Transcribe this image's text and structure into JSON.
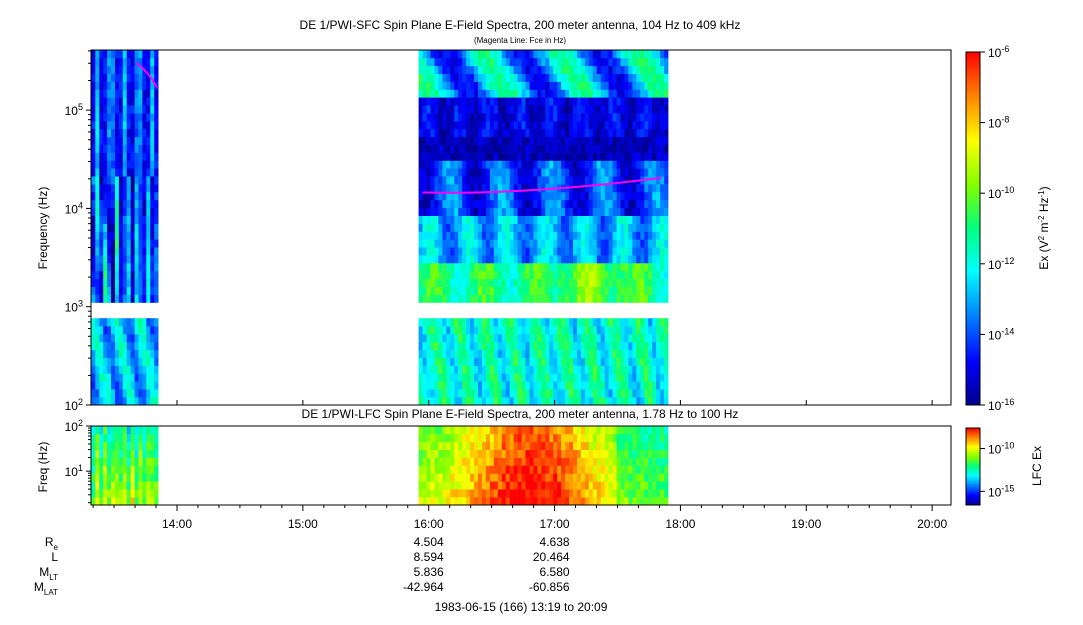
{
  "chart_data": [
    {
      "type": "heatmap",
      "title": "DE 1/PWI-SFC  Spin Plane E-Field Spectra, 200 meter antenna, 104 Hz to 409 kHz",
      "subtitle": "(Magenta Line: Fce in Hz)",
      "ylabel": "Frequency (Hz)",
      "yscale": "log",
      "ylim": [
        100,
        409000
      ],
      "y_ticks": [
        {
          "value": 100,
          "base": "10",
          "exp": "2"
        },
        {
          "value": 1000,
          "base": "10",
          "exp": "3"
        },
        {
          "value": 10000,
          "base": "10",
          "exp": "4"
        },
        {
          "value": 100000,
          "base": "10",
          "exp": "5"
        }
      ],
      "colorbar": {
        "label_parts": {
          "a": "Ex (V",
          "b": "2",
          "c": " m",
          "d": "-2",
          "e": " Hz",
          "f": "-1",
          "g": ")"
        },
        "scale": "log",
        "range": [
          1e-16,
          1e-06
        ],
        "ticks": [
          {
            "value": 1e-06,
            "base": "10",
            "exp": "-6"
          },
          {
            "value": 1e-08,
            "base": "10",
            "exp": "-8"
          },
          {
            "value": 1e-10,
            "base": "10",
            "exp": "-10"
          },
          {
            "value": 1e-12,
            "base": "10",
            "exp": "-12"
          },
          {
            "value": 1e-14,
            "base": "10",
            "exp": "-14"
          },
          {
            "value": 1e-16,
            "base": "10",
            "exp": "-16"
          }
        ]
      },
      "data_intervals_hours": [
        [
          13.32,
          13.85
        ],
        [
          15.92,
          17.87
        ]
      ]
    },
    {
      "type": "heatmap",
      "title": "DE 1/PWI-LFC  Spin Plane E-Field Spectra, 200 meter antenna, 1.78 Hz to 100 Hz",
      "ylabel": "Freq (Hz)",
      "yscale": "log",
      "ylim": [
        1.78,
        100
      ],
      "y_ticks": [
        {
          "value": 10,
          "base": "10",
          "exp": "1"
        },
        {
          "value": 100,
          "base": "10",
          "exp": "2"
        }
      ],
      "colorbar": {
        "label": "LFC Ex",
        "scale": "log",
        "ticks": [
          {
            "value": 1e-10,
            "base": "10",
            "exp": "-10"
          },
          {
            "value": 1e-15,
            "base": "10",
            "exp": "-15"
          }
        ]
      },
      "data_intervals_hours": [
        [
          13.32,
          13.85
        ],
        [
          15.92,
          17.87
        ]
      ]
    }
  ],
  "x_axis": {
    "range_hours": [
      13.3167,
      20.15
    ],
    "tick_labels": [
      {
        "hour": 14,
        "label": "14:00"
      },
      {
        "hour": 15,
        "label": "15:00"
      },
      {
        "hour": 16,
        "label": "16:00"
      },
      {
        "hour": 17,
        "label": "17:00"
      },
      {
        "hour": 18,
        "label": "18:00"
      },
      {
        "hour": 19,
        "label": "19:00"
      },
      {
        "hour": 20,
        "label": "20:00"
      }
    ]
  },
  "ephemeris": {
    "rows": [
      {
        "label": "R",
        "sub": "e",
        "values": [
          {
            "hour": 16,
            "text": "4.504"
          },
          {
            "hour": 17,
            "text": "4.638"
          }
        ]
      },
      {
        "label": "L",
        "sub": "",
        "values": [
          {
            "hour": 16,
            "text": "8.594"
          },
          {
            "hour": 17,
            "text": "20.464"
          }
        ]
      },
      {
        "label": "M",
        "sub": "LT",
        "values": [
          {
            "hour": 16,
            "text": "5.836"
          },
          {
            "hour": 17,
            "text": "6.580"
          }
        ]
      },
      {
        "label": "M",
        "sub": "LAT",
        "values": [
          {
            "hour": 16,
            "text": "-42.964"
          },
          {
            "hour": 17,
            "text": "-60.856"
          }
        ]
      }
    ]
  },
  "footer": "1983-06-15 (166) 13:19 to 20:09",
  "colors": {
    "magenta_line": "#ff00ff",
    "colormap": [
      "#00008b",
      "#0000ff",
      "#007fff",
      "#00ffff",
      "#00ff7f",
      "#7fff00",
      "#ffff00",
      "#ff7f00",
      "#ff0000"
    ]
  }
}
